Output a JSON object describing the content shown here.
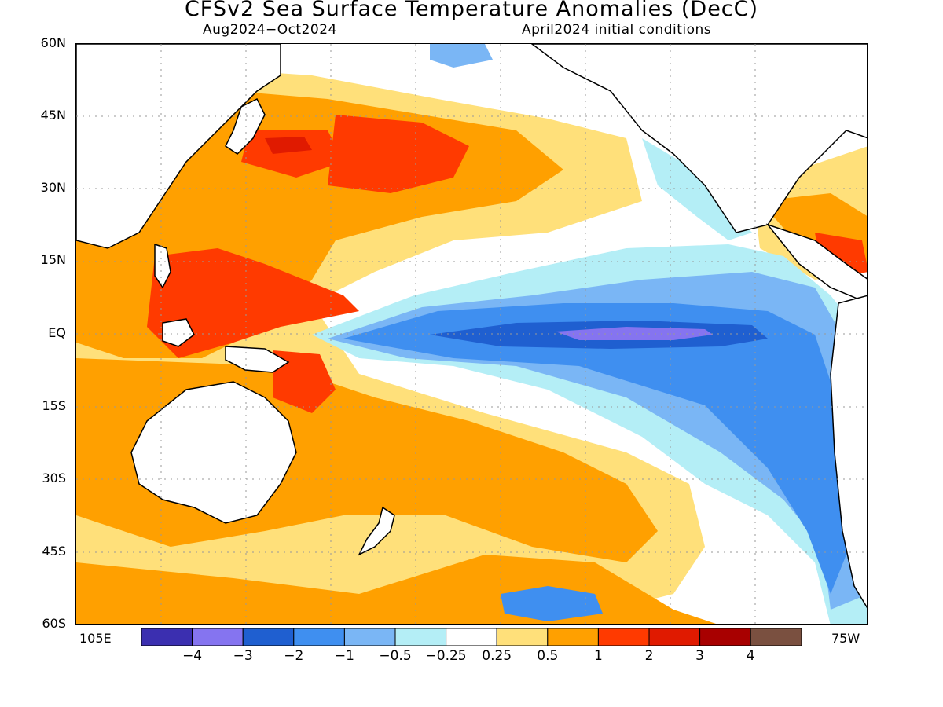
{
  "title": "CFSv2 Sea Surface Temperature Anomalies (DecC)",
  "subtitle_left": "Aug2024−Oct2024",
  "subtitle_right": "April2024 initial conditions",
  "lat_labels": [
    "60N",
    "45N",
    "30N",
    "15N",
    "EQ",
    "15S",
    "30S",
    "45S",
    "60S"
  ],
  "lon_labels": {
    "left": "105E",
    "right": "75W"
  },
  "colorbar": {
    "colors": [
      "#3b2fb0",
      "#8574f0",
      "#1f5fd0",
      "#3f8ff0",
      "#7ab6f5",
      "#b4eef6",
      "#ffffff",
      "#ffe07a",
      "#ffa000",
      "#ff3a00",
      "#e01a00",
      "#a80000",
      "#7a5040"
    ],
    "labels": [
      "−4",
      "−3",
      "−2",
      "−1",
      "−0.5",
      "−0.25",
      "0.25",
      "0.5",
      "1",
      "2",
      "3",
      "4"
    ]
  },
  "palette": {
    "pale_yellow": "#ffe07a",
    "orange": "#ffa000",
    "red_orange": "#ff3a00",
    "red": "#e01a00",
    "darkred": "#c80000",
    "lightcyan": "#b4eef6",
    "lightblue": "#7ab6f5",
    "blue": "#3f8ff0",
    "darkblue": "#1f5fd0",
    "purple": "#8574f0"
  }
}
